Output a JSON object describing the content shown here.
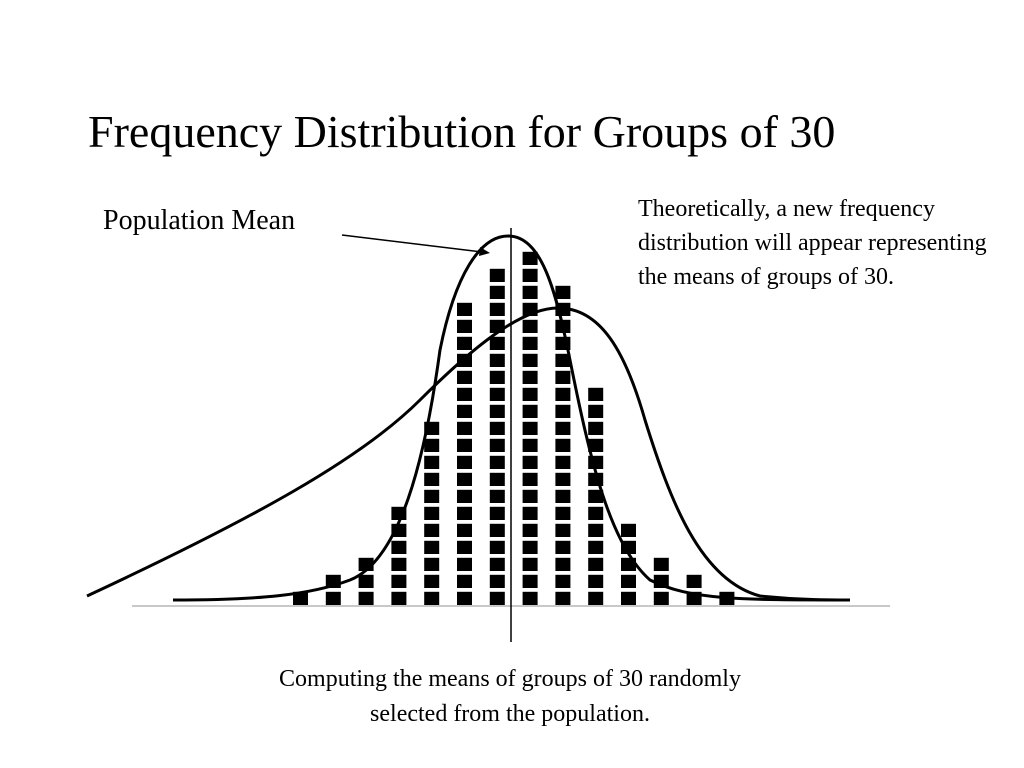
{
  "title": "Frequency Distribution for Groups of 30",
  "annotation_left": "Population Mean",
  "annotation_right": "Theoretically, a new frequency distribution will appear representing the means of groups of 30.",
  "caption_line1": "Computing the means of groups of 30 randomly",
  "caption_line2": "selected from the population.",
  "chart_data": {
    "type": "bar",
    "style": "stacked-square-markers",
    "marker_color": "#000000",
    "bar_counts": [
      1,
      2,
      3,
      6,
      11,
      18,
      20,
      21,
      19,
      13,
      5,
      3,
      2,
      1
    ],
    "curves": [
      "population-distribution",
      "sampling-distribution-of-means"
    ],
    "mean_line": true,
    "grid": false,
    "legend": "none"
  }
}
